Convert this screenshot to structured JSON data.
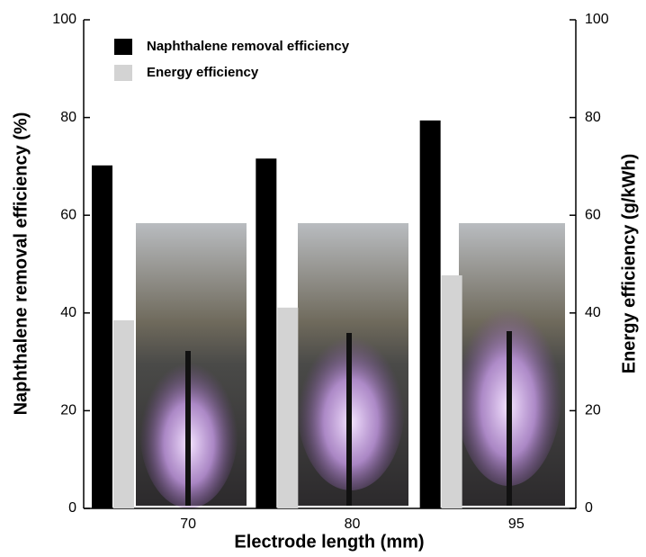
{
  "chart_data": {
    "type": "bar",
    "x_label": "Electrode length (mm)",
    "y_label": "Naphthalene removal efficiency (%)",
    "y2_label": "Energy efficiency (g/kWh)",
    "categories": [
      "70",
      "80",
      "95"
    ],
    "series": [
      {
        "name": "Naphthalene removal efficiency",
        "color": "#000000",
        "values": [
          70.2,
          71.6,
          79.4
        ]
      },
      {
        "name": "Energy efficiency",
        "color": "#d3d3d3",
        "axis": "y2",
        "values": [
          38.5,
          41.1,
          47.7
        ]
      }
    ],
    "ylim": [
      0,
      100
    ],
    "yticks": [
      0,
      20,
      40,
      60,
      80,
      100
    ],
    "y2lim": [
      0,
      100
    ],
    "y2ticks": [
      0,
      20,
      40,
      60,
      80,
      100
    ],
    "legend": "upper-left"
  }
}
